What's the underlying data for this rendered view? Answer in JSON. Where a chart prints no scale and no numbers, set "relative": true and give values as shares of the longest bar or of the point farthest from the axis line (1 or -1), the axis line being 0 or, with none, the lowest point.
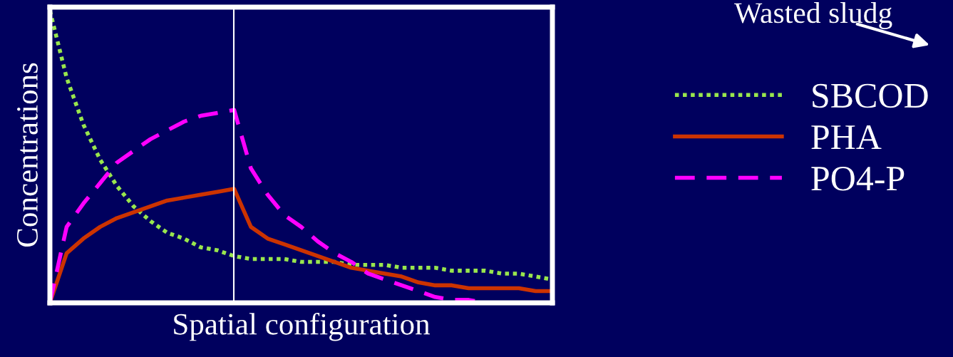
{
  "chart_data": {
    "type": "line",
    "relative": true,
    "xlabel": "Spatial configuration",
    "ylabel": "Concentrations",
    "categories": [
      null,
      null,
      null,
      null,
      null,
      null,
      null,
      null,
      null,
      null,
      null,
      null,
      null,
      null,
      null,
      null,
      null,
      null,
      null,
      null,
      null,
      null,
      null,
      null,
      null,
      null,
      null,
      null,
      null,
      null,
      null
    ],
    "series": [
      {
        "name": "SBCOD",
        "color": "#99e64d",
        "line_style": "dotted",
        "values": [
          1.0,
          0.77,
          0.61,
          0.49,
          0.4,
          0.33,
          0.28,
          0.24,
          0.22,
          0.19,
          0.18,
          0.16,
          0.15,
          0.15,
          0.15,
          0.14,
          0.14,
          0.14,
          0.13,
          0.13,
          0.13,
          0.12,
          0.12,
          0.12,
          0.11,
          0.11,
          0.11,
          0.1,
          0.1,
          0.09,
          0.08
        ]
      },
      {
        "name": "PHA",
        "color": "#cc3300",
        "line_style": "solid",
        "values": [
          0,
          0.17,
          0.22,
          0.26,
          0.29,
          0.31,
          0.33,
          0.35,
          0.36,
          0.37,
          0.38,
          0.39,
          0.26,
          0.22,
          0.2,
          0.18,
          0.16,
          0.14,
          0.12,
          0.11,
          0.1,
          0.09,
          0.07,
          0.06,
          0.06,
          0.05,
          0.05,
          0.05,
          0.05,
          0.04,
          0.04
        ]
      },
      {
        "name": "PO4-P",
        "color": "#ff00ff",
        "line_style": "dashed",
        "values": [
          0,
          0.26,
          0.34,
          0.41,
          0.48,
          0.52,
          0.56,
          0.59,
          0.62,
          0.64,
          0.65,
          0.66,
          0.46,
          0.37,
          0.3,
          0.26,
          0.21,
          0.17,
          0.14,
          0.1,
          0.08,
          0.06,
          0.04,
          0.02,
          0.01,
          0.01,
          0,
          0,
          null,
          null,
          null
        ]
      }
    ],
    "legend": "right",
    "marker": "none",
    "annotations": [
      "Wasted sludg"
    ]
  }
}
